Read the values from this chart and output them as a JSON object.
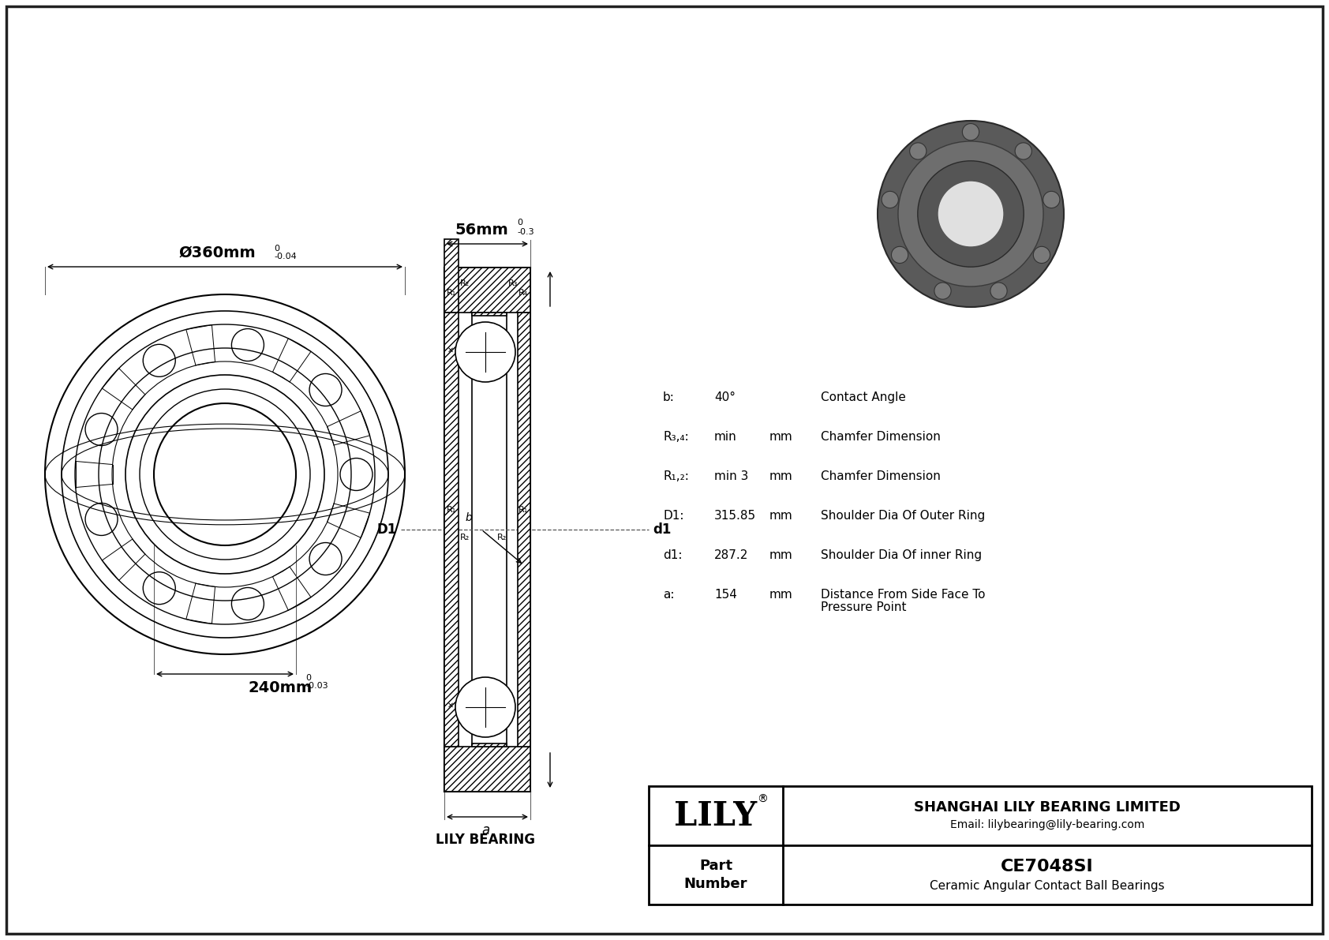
{
  "bg_color": "#ffffff",
  "line_color": "#000000",
  "part_number": "CE7048SI",
  "part_type": "Ceramic Angular Contact Ball Bearings",
  "company": "SHANGHAI LILY BEARING LIMITED",
  "email": "Email: lilybearing@lily-bearing.com",
  "lily_label": "LILY BEARING",
  "outer_dim_label": "Ø360mm",
  "outer_tol_sup": "0",
  "outer_tol_sub": "-0.04",
  "inner_dim_label": "240mm",
  "inner_tol_sup": "0",
  "inner_tol_sub": "-0.03",
  "width_label": "56mm",
  "width_tol_sup": "0",
  "width_tol_sub": "-0.3",
  "params": [
    {
      "sym": "b:",
      "val": "40°",
      "unit": "",
      "desc": "Contact Angle"
    },
    {
      "sym": "R₃,₄:",
      "val": "min",
      "unit": "mm",
      "desc": "Chamfer Dimension"
    },
    {
      "sym": "R₁,₂:",
      "val": "min 3",
      "unit": "mm",
      "desc": "Chamfer Dimension"
    },
    {
      "sym": "D1:",
      "val": "315.85",
      "unit": "mm",
      "desc": "Shoulder Dia Of Outer Ring"
    },
    {
      "sym": "d1:",
      "val": "287.2",
      "unit": "mm",
      "desc": "Shoulder Dia Of inner Ring"
    },
    {
      "sym": "a:",
      "val": "154",
      "unit": "mm",
      "desc": "Distance From Side Face To\nPressure Point"
    }
  ]
}
